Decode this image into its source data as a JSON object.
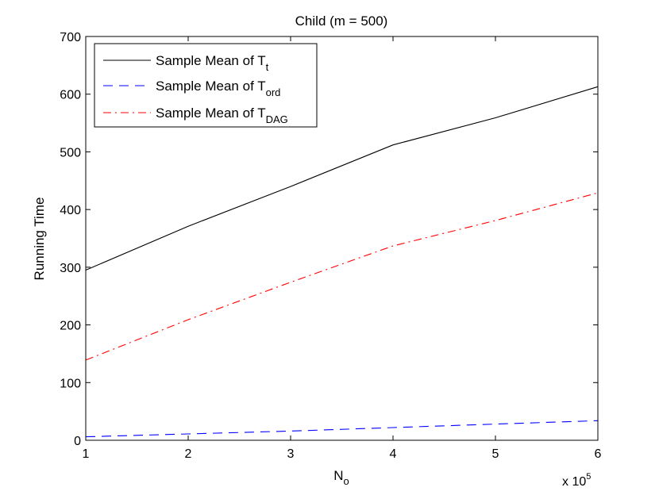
{
  "chart_data": {
    "type": "line",
    "title": "Child (m = 500)",
    "xlabel": {
      "base": "N",
      "sub": "o"
    },
    "ylabel": "Running Time",
    "x_multiplier": {
      "prefix": "x 10",
      "exponent": "5"
    },
    "x": [
      1,
      2,
      3,
      4,
      5,
      6
    ],
    "xlim": [
      1,
      6
    ],
    "ylim": [
      0,
      700
    ],
    "xticks": [
      1,
      2,
      3,
      4,
      5,
      6
    ],
    "yticks": [
      0,
      100,
      200,
      300,
      400,
      500,
      600,
      700
    ],
    "grid": false,
    "legend_position": "top-left",
    "series": [
      {
        "name": "Sample Mean of T_t",
        "label_base": "Sample Mean of T",
        "label_sub": "t",
        "color": "#000000",
        "style": "solid",
        "values": [
          295,
          371,
          440,
          512,
          559,
          613
        ]
      },
      {
        "name": "Sample Mean of T_ord",
        "label_base": "Sample Mean of T",
        "label_sub": "ord",
        "color": "#0000ff",
        "style": "dashed",
        "values": [
          6,
          11,
          16,
          22,
          28,
          34
        ]
      },
      {
        "name": "Sample Mean of T_DAG",
        "label_base": "Sample Mean of T",
        "label_sub": "DAG",
        "color": "#ff0000",
        "style": "dashdot",
        "values": [
          139,
          209,
          274,
          337,
          381,
          429
        ]
      }
    ]
  }
}
